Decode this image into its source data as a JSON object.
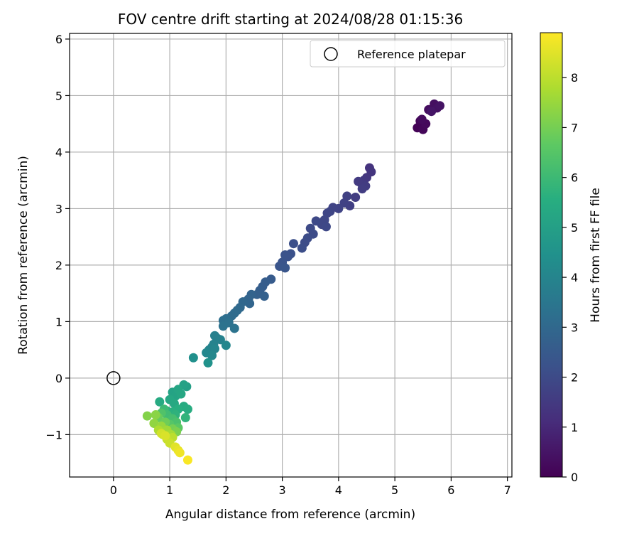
{
  "chart_data": {
    "type": "scatter",
    "title": "FOV centre drift starting at 2024/08/28 01:15:36",
    "xlabel": "Angular distance from reference (arcmin)",
    "ylabel": "Rotation from reference (arcmin)",
    "xlim": [
      -0.78,
      7.08
    ],
    "ylim": [
      -1.75,
      6.1
    ],
    "xticks": [
      0,
      1,
      2,
      3,
      4,
      5,
      6,
      7
    ],
    "yticks": [
      -1,
      0,
      1,
      2,
      3,
      4,
      5,
      6
    ],
    "xtick_labels": [
      "0",
      "1",
      "2",
      "3",
      "4",
      "5",
      "6",
      "7"
    ],
    "ytick_labels": [
      "−1",
      "0",
      "1",
      "2",
      "3",
      "4",
      "5",
      "6"
    ],
    "grid": true,
    "legend": {
      "position": "top-right",
      "entries": [
        {
          "label": "Reference platepar",
          "marker": "open-circle"
        }
      ]
    },
    "reference_point": {
      "x": 0,
      "y": 0
    },
    "colorbar": {
      "label": "Hours from first FF file",
      "colormap": "viridis",
      "range": [
        0,
        8.9
      ],
      "ticks": [
        0,
        1,
        2,
        3,
        4,
        5,
        6,
        7,
        8
      ],
      "tick_labels": [
        "0",
        "1",
        "2",
        "3",
        "4",
        "5",
        "6",
        "7",
        "8"
      ]
    },
    "points": [
      {
        "x": 5.4,
        "y": 4.43,
        "h": 0.05
      },
      {
        "x": 5.45,
        "y": 4.55,
        "h": 0.1
      },
      {
        "x": 5.5,
        "y": 4.4,
        "h": 0.15
      },
      {
        "x": 5.55,
        "y": 4.5,
        "h": 0.2
      },
      {
        "x": 5.48,
        "y": 4.58,
        "h": 0.25
      },
      {
        "x": 5.6,
        "y": 4.75,
        "h": 0.3
      },
      {
        "x": 5.7,
        "y": 4.85,
        "h": 0.35
      },
      {
        "x": 5.75,
        "y": 4.78,
        "h": 0.4
      },
      {
        "x": 5.8,
        "y": 4.82,
        "h": 0.45
      },
      {
        "x": 5.65,
        "y": 4.72,
        "h": 0.5
      },
      {
        "x": 4.55,
        "y": 3.72,
        "h": 1.3
      },
      {
        "x": 4.58,
        "y": 3.65,
        "h": 1.35
      },
      {
        "x": 4.5,
        "y": 3.55,
        "h": 1.4
      },
      {
        "x": 4.45,
        "y": 3.5,
        "h": 1.45
      },
      {
        "x": 4.4,
        "y": 3.45,
        "h": 1.5
      },
      {
        "x": 4.35,
        "y": 3.48,
        "h": 1.52
      },
      {
        "x": 4.48,
        "y": 3.4,
        "h": 1.55
      },
      {
        "x": 4.42,
        "y": 3.35,
        "h": 1.58
      },
      {
        "x": 4.3,
        "y": 3.2,
        "h": 1.6
      },
      {
        "x": 4.2,
        "y": 3.05,
        "h": 1.65
      },
      {
        "x": 4.15,
        "y": 3.22,
        "h": 1.7
      },
      {
        "x": 4.1,
        "y": 3.1,
        "h": 1.72
      },
      {
        "x": 4.0,
        "y": 3.0,
        "h": 1.78
      },
      {
        "x": 3.9,
        "y": 3.02,
        "h": 1.8
      },
      {
        "x": 3.85,
        "y": 2.95,
        "h": 1.82
      },
      {
        "x": 3.8,
        "y": 2.92,
        "h": 1.85
      },
      {
        "x": 3.75,
        "y": 2.8,
        "h": 1.88
      },
      {
        "x": 3.7,
        "y": 2.72,
        "h": 1.9
      },
      {
        "x": 3.78,
        "y": 2.68,
        "h": 1.92
      },
      {
        "x": 3.6,
        "y": 2.78,
        "h": 1.95
      },
      {
        "x": 3.5,
        "y": 2.65,
        "h": 1.98
      },
      {
        "x": 3.55,
        "y": 2.55,
        "h": 2.0
      },
      {
        "x": 3.45,
        "y": 2.48,
        "h": 2.03
      },
      {
        "x": 3.4,
        "y": 2.4,
        "h": 2.06
      },
      {
        "x": 3.35,
        "y": 2.3,
        "h": 2.1
      },
      {
        "x": 3.2,
        "y": 2.38,
        "h": 2.15
      },
      {
        "x": 3.15,
        "y": 2.2,
        "h": 2.2
      },
      {
        "x": 3.1,
        "y": 2.15,
        "h": 2.22
      },
      {
        "x": 3.05,
        "y": 2.18,
        "h": 2.25
      },
      {
        "x": 3.0,
        "y": 2.05,
        "h": 2.3
      },
      {
        "x": 2.95,
        "y": 1.98,
        "h": 2.33
      },
      {
        "x": 3.05,
        "y": 1.95,
        "h": 2.36
      },
      {
        "x": 2.8,
        "y": 1.75,
        "h": 2.55
      },
      {
        "x": 2.7,
        "y": 1.7,
        "h": 2.6
      },
      {
        "x": 2.65,
        "y": 1.62,
        "h": 2.62
      },
      {
        "x": 2.6,
        "y": 1.55,
        "h": 2.65
      },
      {
        "x": 2.55,
        "y": 1.48,
        "h": 2.7
      },
      {
        "x": 2.68,
        "y": 1.45,
        "h": 2.72
      },
      {
        "x": 2.45,
        "y": 1.48,
        "h": 2.8
      },
      {
        "x": 2.4,
        "y": 1.4,
        "h": 2.85
      },
      {
        "x": 2.42,
        "y": 1.32,
        "h": 2.88
      },
      {
        "x": 2.3,
        "y": 1.35,
        "h": 2.95
      },
      {
        "x": 2.25,
        "y": 1.25,
        "h": 3.0
      },
      {
        "x": 2.2,
        "y": 1.2,
        "h": 3.05
      },
      {
        "x": 2.15,
        "y": 1.15,
        "h": 3.08
      },
      {
        "x": 2.1,
        "y": 1.1,
        "h": 3.1
      },
      {
        "x": 2.0,
        "y": 1.05,
        "h": 3.2
      },
      {
        "x": 1.95,
        "y": 1.02,
        "h": 3.25
      },
      {
        "x": 2.05,
        "y": 0.98,
        "h": 3.3
      },
      {
        "x": 1.95,
        "y": 0.92,
        "h": 3.35
      },
      {
        "x": 2.15,
        "y": 0.88,
        "h": 3.38
      },
      {
        "x": 1.85,
        "y": 0.7,
        "h": 3.8
      },
      {
        "x": 1.8,
        "y": 0.75,
        "h": 3.85
      },
      {
        "x": 1.9,
        "y": 0.68,
        "h": 3.88
      },
      {
        "x": 1.78,
        "y": 0.6,
        "h": 3.92
      },
      {
        "x": 1.75,
        "y": 0.55,
        "h": 3.95
      },
      {
        "x": 1.7,
        "y": 0.5,
        "h": 4.0
      },
      {
        "x": 1.8,
        "y": 0.52,
        "h": 4.02
      },
      {
        "x": 2.0,
        "y": 0.58,
        "h": 4.05
      },
      {
        "x": 1.65,
        "y": 0.45,
        "h": 4.1
      },
      {
        "x": 1.75,
        "y": 0.4,
        "h": 4.12
      },
      {
        "x": 1.42,
        "y": 0.36,
        "h": 4.4
      },
      {
        "x": 1.68,
        "y": 0.27,
        "h": 4.5
      },
      {
        "x": 1.3,
        "y": -0.15,
        "h": 5.0
      },
      {
        "x": 1.25,
        "y": -0.12,
        "h": 5.05
      },
      {
        "x": 1.05,
        "y": -0.25,
        "h": 5.1
      },
      {
        "x": 1.1,
        "y": -0.32,
        "h": 5.15
      },
      {
        "x": 1.15,
        "y": -0.2,
        "h": 5.2
      },
      {
        "x": 1.2,
        "y": -0.28,
        "h": 5.25
      },
      {
        "x": 1.0,
        "y": -0.38,
        "h": 5.3
      },
      {
        "x": 1.08,
        "y": -0.45,
        "h": 5.35
      },
      {
        "x": 0.82,
        "y": -0.42,
        "h": 5.4
      },
      {
        "x": 1.25,
        "y": -0.5,
        "h": 5.45
      },
      {
        "x": 1.32,
        "y": -0.55,
        "h": 5.5
      },
      {
        "x": 1.15,
        "y": -0.55,
        "h": 5.55
      },
      {
        "x": 1.05,
        "y": -0.6,
        "h": 5.6
      },
      {
        "x": 0.95,
        "y": -0.58,
        "h": 5.65
      },
      {
        "x": 1.1,
        "y": -0.65,
        "h": 5.7
      },
      {
        "x": 1.28,
        "y": -0.7,
        "h": 5.75
      },
      {
        "x": 1.0,
        "y": -0.7,
        "h": 5.8
      },
      {
        "x": 0.9,
        "y": -0.55,
        "h": 6.0
      },
      {
        "x": 0.95,
        "y": -0.65,
        "h": 6.1
      },
      {
        "x": 1.05,
        "y": -0.72,
        "h": 6.2
      },
      {
        "x": 1.12,
        "y": -0.78,
        "h": 6.3
      },
      {
        "x": 0.85,
        "y": -0.62,
        "h": 6.4
      },
      {
        "x": 1.0,
        "y": -0.82,
        "h": 6.5
      },
      {
        "x": 1.15,
        "y": -0.88,
        "h": 6.6
      },
      {
        "x": 0.8,
        "y": -0.7,
        "h": 6.8
      },
      {
        "x": 0.92,
        "y": -0.78,
        "h": 6.9
      },
      {
        "x": 1.05,
        "y": -0.9,
        "h": 7.0
      },
      {
        "x": 1.12,
        "y": -0.95,
        "h": 7.1
      },
      {
        "x": 0.6,
        "y": -0.67,
        "h": 7.2
      },
      {
        "x": 0.75,
        "y": -0.65,
        "h": 7.3
      },
      {
        "x": 0.72,
        "y": -0.8,
        "h": 7.4
      },
      {
        "x": 0.85,
        "y": -0.85,
        "h": 7.5
      },
      {
        "x": 0.95,
        "y": -0.92,
        "h": 7.6
      },
      {
        "x": 1.02,
        "y": -1.0,
        "h": 7.7
      },
      {
        "x": 0.8,
        "y": -0.92,
        "h": 7.8
      },
      {
        "x": 0.88,
        "y": -1.0,
        "h": 7.9
      },
      {
        "x": 1.05,
        "y": -1.05,
        "h": 8.0
      },
      {
        "x": 0.95,
        "y": -1.08,
        "h": 8.1
      },
      {
        "x": 1.0,
        "y": -1.15,
        "h": 8.2
      },
      {
        "x": 0.85,
        "y": -0.98,
        "h": 8.3
      },
      {
        "x": 0.92,
        "y": -1.02,
        "h": 8.4
      },
      {
        "x": 1.1,
        "y": -1.22,
        "h": 8.5
      },
      {
        "x": 1.15,
        "y": -1.28,
        "h": 8.6
      },
      {
        "x": 1.18,
        "y": -1.32,
        "h": 8.7
      },
      {
        "x": 1.32,
        "y": -1.45,
        "h": 8.85
      }
    ]
  }
}
